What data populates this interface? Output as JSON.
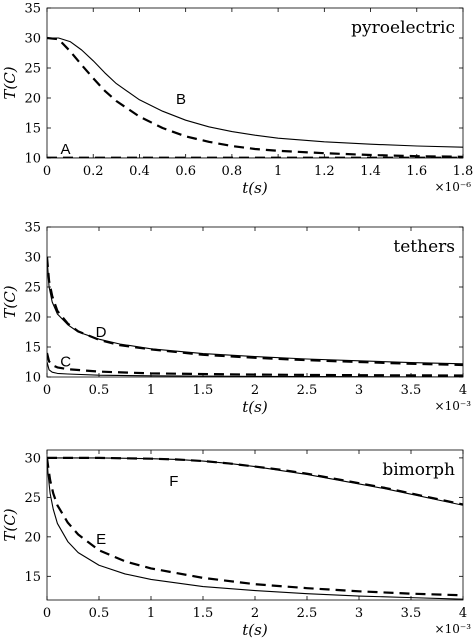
{
  "chart_data": [
    {
      "type": "line",
      "title": "pyroelectric",
      "xlabel": "t(s)",
      "ylabel": "T(C)",
      "x_multiplier": "×10⁻⁶",
      "xlim": [
        0,
        1.8
      ],
      "ylim": [
        10,
        35
      ],
      "xticks": [
        0,
        0.2,
        0.4,
        0.6,
        0.8,
        1,
        1.2,
        1.4,
        1.6,
        1.8
      ],
      "xtick_labels": [
        "0",
        "0.2",
        "0.4",
        "0.6",
        "0.8",
        "1",
        "1.2",
        "1.4",
        "1.6",
        "1.8"
      ],
      "yticks": [
        10,
        15,
        20,
        25,
        30,
        35
      ],
      "ytick_labels": [
        "10",
        "15",
        "20",
        "25",
        "30",
        "35"
      ],
      "grid": false,
      "series": [
        {
          "style": "solid",
          "x": [
            0,
            0.05,
            0.1,
            0.15,
            0.2,
            0.25,
            0.3,
            0.4,
            0.5,
            0.6,
            0.7,
            0.8,
            0.9,
            1.0,
            1.2,
            1.4,
            1.6,
            1.8
          ],
          "y": [
            30.0,
            30.0,
            29.4,
            28.0,
            26.2,
            24.2,
            22.4,
            19.7,
            17.8,
            16.3,
            15.2,
            14.4,
            13.8,
            13.3,
            12.7,
            12.3,
            12.0,
            11.8
          ]
        },
        {
          "style": "dashed",
          "x": [
            0,
            0.05,
            0.1,
            0.15,
            0.2,
            0.25,
            0.3,
            0.4,
            0.5,
            0.6,
            0.7,
            0.8,
            0.9,
            1.0,
            1.2,
            1.4,
            1.6,
            1.8
          ],
          "y": [
            30.0,
            29.8,
            27.8,
            25.5,
            23.3,
            21.2,
            19.5,
            16.9,
            15.0,
            13.6,
            12.7,
            12.0,
            11.5,
            11.2,
            10.8,
            10.5,
            10.3,
            10.2
          ]
        },
        {
          "style": "solid",
          "x": [
            0,
            1.8
          ],
          "y": [
            10.0,
            10.0
          ]
        },
        {
          "style": "dashed",
          "x": [
            0,
            1.8
          ],
          "y": [
            10.05,
            10.05
          ]
        }
      ],
      "annotations": [
        {
          "text": "B",
          "x": 0.58,
          "y": 19.8
        },
        {
          "text": "A",
          "x": 0.08,
          "y": 11.5
        }
      ]
    },
    {
      "type": "line",
      "title": "tethers",
      "xlabel": "t(s)",
      "ylabel": "T(C)",
      "x_multiplier": "×10⁻³",
      "xlim": [
        0,
        4
      ],
      "ylim": [
        10,
        35
      ],
      "xticks": [
        0,
        0.5,
        1,
        1.5,
        2,
        2.5,
        3,
        3.5,
        4
      ],
      "xtick_labels": [
        "0",
        "0.5",
        "1",
        "1.5",
        "2",
        "2.5",
        "3",
        "3.5",
        "4"
      ],
      "yticks": [
        10,
        15,
        20,
        25,
        30,
        35
      ],
      "ytick_labels": [
        "10",
        "15",
        "20",
        "25",
        "30",
        "35"
      ],
      "grid": false,
      "series": [
        {
          "style": "solid",
          "x": [
            0,
            0.02,
            0.05,
            0.1,
            0.2,
            0.3,
            0.5,
            0.7,
            1.0,
            1.5,
            2.0,
            2.5,
            3.0,
            3.5,
            4.0
          ],
          "y": [
            30,
            25.0,
            22.5,
            20.5,
            18.7,
            17.5,
            16.3,
            15.5,
            14.7,
            13.9,
            13.4,
            13.0,
            12.7,
            12.4,
            12.2
          ]
        },
        {
          "style": "dashed",
          "x": [
            0,
            0.02,
            0.05,
            0.1,
            0.2,
            0.3,
            0.5,
            0.7,
            1.0,
            1.5,
            2.0,
            2.5,
            3.0,
            3.5,
            4.0
          ],
          "y": [
            30,
            26.0,
            23.5,
            21.0,
            18.9,
            17.6,
            16.2,
            15.3,
            14.6,
            13.7,
            13.2,
            12.8,
            12.5,
            12.2,
            12.0
          ]
        },
        {
          "style": "solid",
          "x": [
            0,
            0.02,
            0.05,
            0.1,
            0.2,
            0.5,
            1.0,
            2.0,
            3.0,
            4.0
          ],
          "y": [
            12.5,
            11.2,
            10.8,
            10.6,
            10.5,
            10.3,
            10.2,
            10.1,
            10.05,
            10.0
          ]
        },
        {
          "style": "dashed",
          "x": [
            0,
            0.02,
            0.05,
            0.1,
            0.2,
            0.5,
            1.0,
            2.0,
            3.0,
            4.0
          ],
          "y": [
            14.0,
            12.6,
            12.0,
            11.6,
            11.3,
            10.9,
            10.6,
            10.4,
            10.3,
            10.25
          ]
        }
      ],
      "annotations": [
        {
          "text": "D",
          "x": 0.52,
          "y": 17.5
        },
        {
          "text": "C",
          "x": 0.18,
          "y": 12.6
        }
      ]
    },
    {
      "type": "line",
      "title": "bimorph",
      "xlabel": "t(s)",
      "ylabel": "T(C)",
      "x_multiplier": "×10⁻³",
      "xlim": [
        0,
        4
      ],
      "ylim": [
        12,
        31
      ],
      "xticks": [
        0,
        0.5,
        1,
        1.5,
        2,
        2.5,
        3,
        3.5,
        4
      ],
      "xtick_labels": [
        "0",
        "0.5",
        "1",
        "1.5",
        "2",
        "2.5",
        "3",
        "3.5",
        "4"
      ],
      "yticks": [
        15,
        20,
        25,
        30
      ],
      "ytick_labels": [
        "15",
        "20",
        "25",
        "30"
      ],
      "grid": false,
      "series": [
        {
          "style": "solid",
          "x": [
            0,
            0.5,
            1.0,
            1.25,
            1.5,
            1.75,
            2.0,
            2.25,
            2.5,
            2.75,
            3.0,
            3.25,
            3.5,
            3.75,
            4.0
          ],
          "y": [
            30.0,
            30.0,
            29.9,
            29.8,
            29.6,
            29.3,
            28.9,
            28.4,
            27.9,
            27.3,
            26.7,
            26.1,
            25.4,
            24.7,
            24.0
          ]
        },
        {
          "style": "dashed",
          "x": [
            0,
            0.5,
            1.0,
            1.25,
            1.5,
            1.75,
            2.0,
            2.25,
            2.5,
            2.75,
            3.0,
            3.25,
            3.5,
            3.75,
            4.0
          ],
          "y": [
            30.0,
            30.0,
            29.9,
            29.8,
            29.6,
            29.3,
            28.9,
            28.5,
            28.0,
            27.4,
            26.8,
            26.2,
            25.5,
            24.8,
            24.1
          ]
        },
        {
          "style": "solid",
          "x": [
            0,
            0.01,
            0.03,
            0.06,
            0.1,
            0.2,
            0.3,
            0.5,
            0.75,
            1.0,
            1.5,
            2.0,
            2.5,
            3.0,
            3.5,
            4.0
          ],
          "y": [
            30,
            28.0,
            25.5,
            23.5,
            21.7,
            19.4,
            18.0,
            16.4,
            15.3,
            14.6,
            13.7,
            13.2,
            12.8,
            12.5,
            12.3,
            12.1
          ]
        },
        {
          "style": "dashed",
          "x": [
            0,
            0.01,
            0.03,
            0.06,
            0.1,
            0.2,
            0.3,
            0.5,
            0.75,
            1.0,
            1.5,
            2.0,
            2.5,
            3.0,
            3.5,
            4.0
          ],
          "y": [
            30,
            29.0,
            27.2,
            25.5,
            24.0,
            21.8,
            20.3,
            18.3,
            16.9,
            16.0,
            14.8,
            14.0,
            13.5,
            13.1,
            12.8,
            12.6
          ]
        }
      ],
      "annotations": [
        {
          "text": "F",
          "x": 1.22,
          "y": 27.1
        },
        {
          "text": "E",
          "x": 0.52,
          "y": 19.7
        }
      ]
    }
  ]
}
